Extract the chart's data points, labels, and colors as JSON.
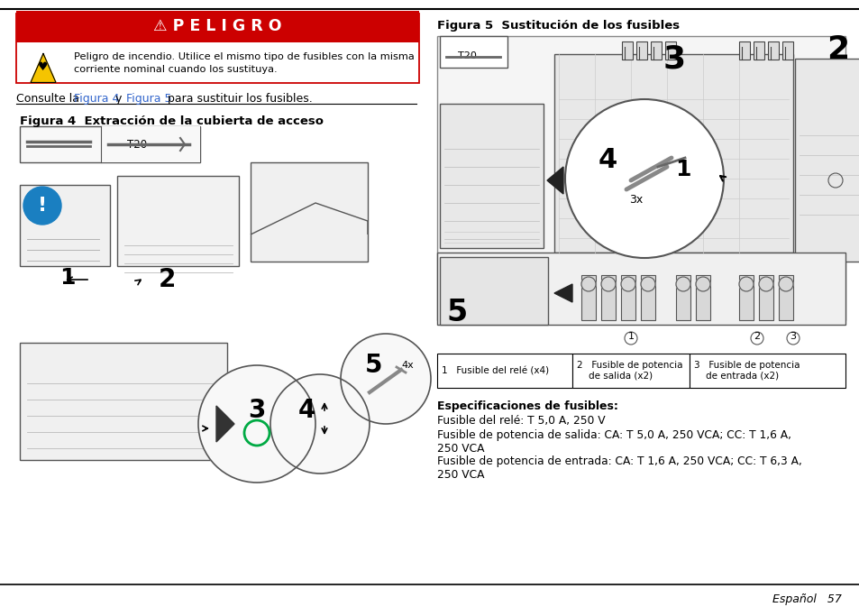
{
  "page_bg": "#ffffff",
  "danger_red": "#cc0000",
  "danger_text": "⚠ P E L I G R O",
  "danger_body": "Peligro de incendio. Utilice el mismo tipo de fusibles con la misma\ncorriente nominal cuando los sustituya.",
  "link_color": "#3366cc",
  "fig4_title": "Figura 4  Extracción de la cubierta de acceso",
  "fig5_title": "Figura 5  Sustitución de los fusibles",
  "table_cols": [
    485,
    635,
    765,
    938
  ],
  "table_labels": [
    "1   Fusible del relé (x4)",
    "2   Fusible de potencia\n    de salida (x2)",
    "3   Fusible de potencia\n    de entrada (x2)"
  ],
  "specs_title": "Especificaciones de fusibles:",
  "spec1": "Fusible del relé: T 5,0 A, 250 V",
  "spec2": "Fusible de potencia de salida: CA: T 5,0 A, 250 VCA; CC: T 1,6 A,\n250 VCA",
  "spec3": "Fusible de potencia de entrada: CA: T 1,6 A, 250 VCA; CC: T 6,3 A,\n250 VCA",
  "footer": "Español   57",
  "pw": 954,
  "ph": 673
}
